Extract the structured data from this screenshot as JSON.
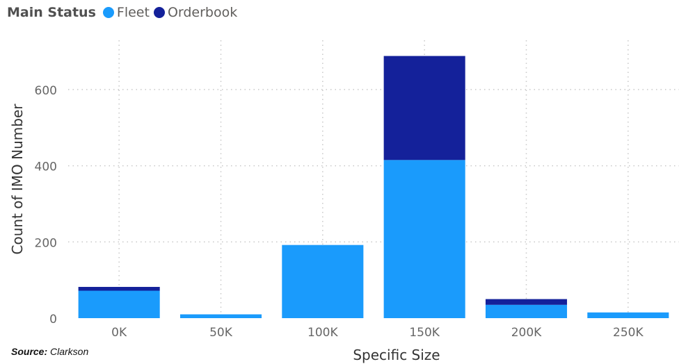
{
  "legend": {
    "title": "Main Status",
    "items": [
      {
        "label": "Fleet",
        "color": "#1a9bfc"
      },
      {
        "label": "Orderbook",
        "color": "#14219a"
      }
    ]
  },
  "source": {
    "prefix": "Source:",
    "text": "Clarkson"
  },
  "chart_data": {
    "type": "bar",
    "stacked": true,
    "categories": [
      "0K",
      "50K",
      "100K",
      "150K",
      "200K",
      "250K"
    ],
    "series": [
      {
        "name": "Fleet",
        "color": "#1a9bfc",
        "values": [
          72,
          10,
          192,
          415,
          35,
          15
        ]
      },
      {
        "name": "Orderbook",
        "color": "#14219a",
        "values": [
          10,
          0,
          0,
          273,
          15,
          0
        ]
      }
    ],
    "xlabel": "Specific Size",
    "ylabel": "Count of IMO Number",
    "ylim": [
      0,
      700
    ],
    "yticks": [
      0,
      200,
      400,
      600
    ],
    "grid": true,
    "legend_position": "top-left"
  }
}
